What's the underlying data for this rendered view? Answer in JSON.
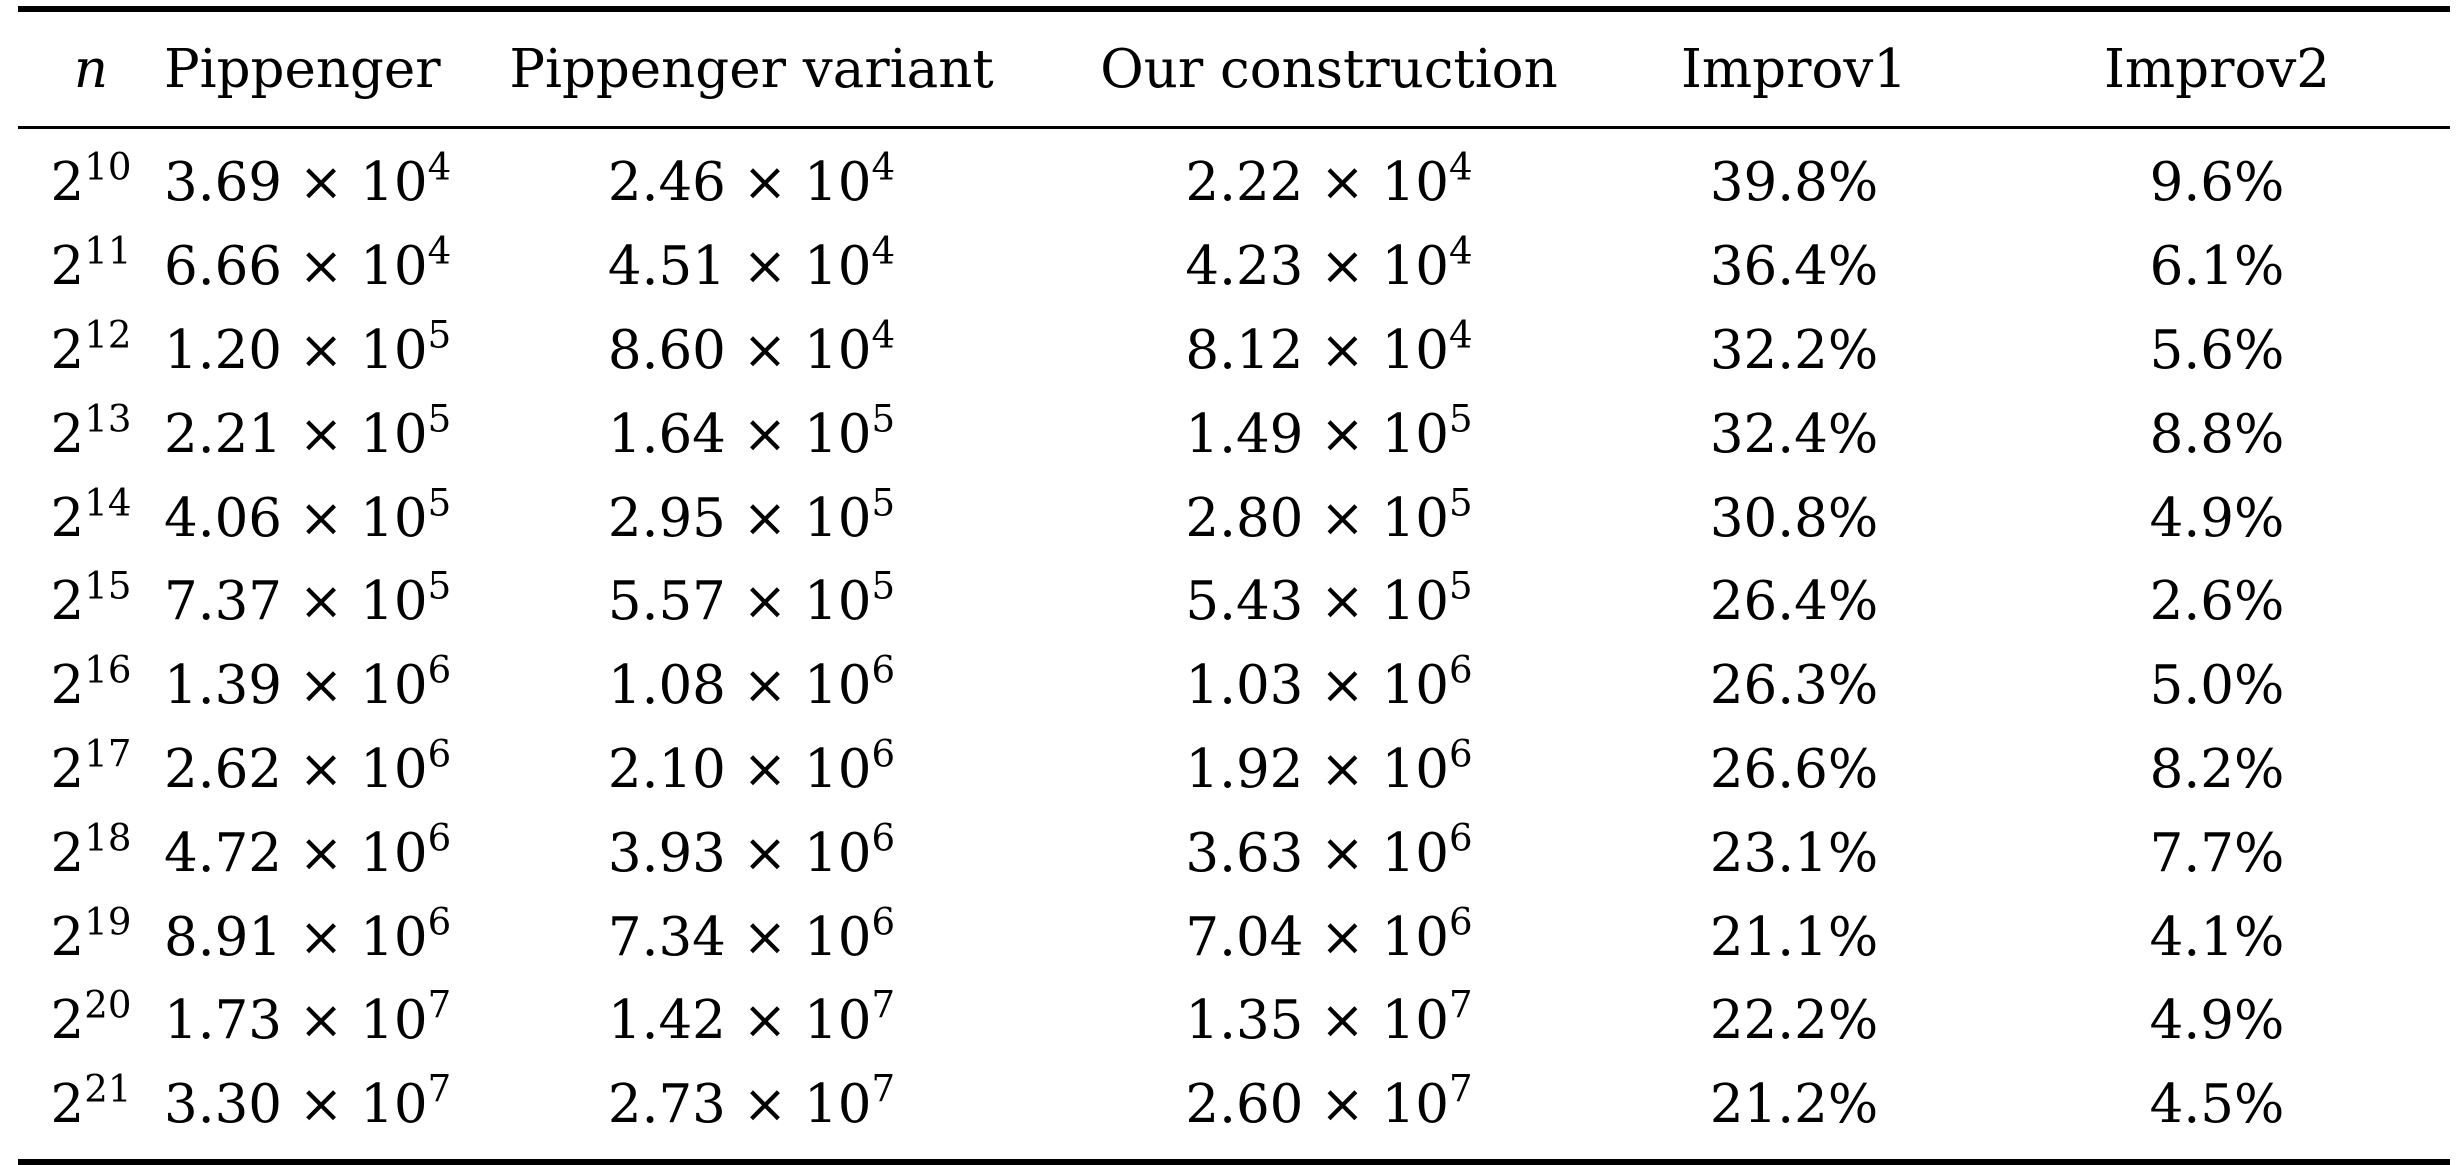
{
  "table": {
    "headers": {
      "n": "n",
      "pippenger": "Pippenger",
      "pippenger_variant": "Pippenger variant",
      "our_construction": "Our construction",
      "improv1": "Improv1",
      "improv2": "Improv2"
    },
    "rows": [
      {
        "n": {
          "base": "2",
          "exp": "10"
        },
        "pippenger": {
          "mant": "3.69",
          "times": "×",
          "base": "10",
          "exp": "4"
        },
        "pippenger_variant": {
          "mant": "2.46",
          "times": "×",
          "base": "10",
          "exp": "4"
        },
        "our_construction": {
          "mant": "2.22",
          "times": "×",
          "base": "10",
          "exp": "4"
        },
        "improv1": "39.8%",
        "improv2": "9.6%"
      },
      {
        "n": {
          "base": "2",
          "exp": "11"
        },
        "pippenger": {
          "mant": "6.66",
          "times": "×",
          "base": "10",
          "exp": "4"
        },
        "pippenger_variant": {
          "mant": "4.51",
          "times": "×",
          "base": "10",
          "exp": "4"
        },
        "our_construction": {
          "mant": "4.23",
          "times": "×",
          "base": "10",
          "exp": "4"
        },
        "improv1": "36.4%",
        "improv2": "6.1%"
      },
      {
        "n": {
          "base": "2",
          "exp": "12"
        },
        "pippenger": {
          "mant": "1.20",
          "times": "×",
          "base": "10",
          "exp": "5"
        },
        "pippenger_variant": {
          "mant": "8.60",
          "times": "×",
          "base": "10",
          "exp": "4"
        },
        "our_construction": {
          "mant": "8.12",
          "times": "×",
          "base": "10",
          "exp": "4"
        },
        "improv1": "32.2%",
        "improv2": "5.6%"
      },
      {
        "n": {
          "base": "2",
          "exp": "13"
        },
        "pippenger": {
          "mant": "2.21",
          "times": "×",
          "base": "10",
          "exp": "5"
        },
        "pippenger_variant": {
          "mant": "1.64",
          "times": "×",
          "base": "10",
          "exp": "5"
        },
        "our_construction": {
          "mant": "1.49",
          "times": "×",
          "base": "10",
          "exp": "5"
        },
        "improv1": "32.4%",
        "improv2": "8.8%"
      },
      {
        "n": {
          "base": "2",
          "exp": "14"
        },
        "pippenger": {
          "mant": "4.06",
          "times": "×",
          "base": "10",
          "exp": "5"
        },
        "pippenger_variant": {
          "mant": "2.95",
          "times": "×",
          "base": "10",
          "exp": "5"
        },
        "our_construction": {
          "mant": "2.80",
          "times": "×",
          "base": "10",
          "exp": "5"
        },
        "improv1": "30.8%",
        "improv2": "4.9%"
      },
      {
        "n": {
          "base": "2",
          "exp": "15"
        },
        "pippenger": {
          "mant": "7.37",
          "times": "×",
          "base": "10",
          "exp": "5"
        },
        "pippenger_variant": {
          "mant": "5.57",
          "times": "×",
          "base": "10",
          "exp": "5"
        },
        "our_construction": {
          "mant": "5.43",
          "times": "×",
          "base": "10",
          "exp": "5"
        },
        "improv1": "26.4%",
        "improv2": "2.6%"
      },
      {
        "n": {
          "base": "2",
          "exp": "16"
        },
        "pippenger": {
          "mant": "1.39",
          "times": "×",
          "base": "10",
          "exp": "6"
        },
        "pippenger_variant": {
          "mant": "1.08",
          "times": "×",
          "base": "10",
          "exp": "6"
        },
        "our_construction": {
          "mant": "1.03",
          "times": "×",
          "base": "10",
          "exp": "6"
        },
        "improv1": "26.3%",
        "improv2": "5.0%"
      },
      {
        "n": {
          "base": "2",
          "exp": "17"
        },
        "pippenger": {
          "mant": "2.62",
          "times": "×",
          "base": "10",
          "exp": "6"
        },
        "pippenger_variant": {
          "mant": "2.10",
          "times": "×",
          "base": "10",
          "exp": "6"
        },
        "our_construction": {
          "mant": "1.92",
          "times": "×",
          "base": "10",
          "exp": "6"
        },
        "improv1": "26.6%",
        "improv2": "8.2%"
      },
      {
        "n": {
          "base": "2",
          "exp": "18"
        },
        "pippenger": {
          "mant": "4.72",
          "times": "×",
          "base": "10",
          "exp": "6"
        },
        "pippenger_variant": {
          "mant": "3.93",
          "times": "×",
          "base": "10",
          "exp": "6"
        },
        "our_construction": {
          "mant": "3.63",
          "times": "×",
          "base": "10",
          "exp": "6"
        },
        "improv1": "23.1%",
        "improv2": "7.7%"
      },
      {
        "n": {
          "base": "2",
          "exp": "19"
        },
        "pippenger": {
          "mant": "8.91",
          "times": "×",
          "base": "10",
          "exp": "6"
        },
        "pippenger_variant": {
          "mant": "7.34",
          "times": "×",
          "base": "10",
          "exp": "6"
        },
        "our_construction": {
          "mant": "7.04",
          "times": "×",
          "base": "10",
          "exp": "6"
        },
        "improv1": "21.1%",
        "improv2": "4.1%"
      },
      {
        "n": {
          "base": "2",
          "exp": "20"
        },
        "pippenger": {
          "mant": "1.73",
          "times": "×",
          "base": "10",
          "exp": "7"
        },
        "pippenger_variant": {
          "mant": "1.42",
          "times": "×",
          "base": "10",
          "exp": "7"
        },
        "our_construction": {
          "mant": "1.35",
          "times": "×",
          "base": "10",
          "exp": "7"
        },
        "improv1": "22.2%",
        "improv2": "4.9%"
      },
      {
        "n": {
          "base": "2",
          "exp": "21"
        },
        "pippenger": {
          "mant": "3.30",
          "times": "×",
          "base": "10",
          "exp": "7"
        },
        "pippenger_variant": {
          "mant": "2.73",
          "times": "×",
          "base": "10",
          "exp": "7"
        },
        "our_construction": {
          "mant": "2.60",
          "times": "×",
          "base": "10",
          "exp": "7"
        },
        "improv1": "21.2%",
        "improv2": "4.5%"
      }
    ]
  }
}
